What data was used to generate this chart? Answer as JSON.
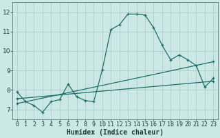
{
  "title": "",
  "xlabel": "Humidex (Indice chaleur)",
  "bg_color": "#cce8e4",
  "grid_color": "#aaccca",
  "line_color": "#1a6e6a",
  "xlim": [
    -0.5,
    23.5
  ],
  "ylim": [
    6.5,
    12.5
  ],
  "xticks": [
    0,
    1,
    2,
    3,
    4,
    5,
    6,
    7,
    8,
    9,
    10,
    11,
    12,
    13,
    14,
    15,
    16,
    17,
    18,
    19,
    20,
    21,
    22,
    23
  ],
  "yticks": [
    7,
    8,
    9,
    10,
    11,
    12
  ],
  "line1_x": [
    0,
    1,
    2,
    3,
    4,
    5,
    6,
    7,
    8,
    9,
    10,
    11,
    12,
    13,
    14,
    15,
    16,
    17,
    18,
    19,
    20,
    21,
    22,
    23
  ],
  "line1_y": [
    7.9,
    7.4,
    7.2,
    6.85,
    7.4,
    7.5,
    8.3,
    7.65,
    7.45,
    7.4,
    9.05,
    11.1,
    11.35,
    11.9,
    11.9,
    11.85,
    11.2,
    10.3,
    9.55,
    9.8,
    9.55,
    9.25,
    8.15,
    8.6
  ],
  "line2_x": [
    0,
    23
  ],
  "line2_y": [
    7.55,
    8.45
  ],
  "line3_x": [
    0,
    23
  ],
  "line3_y": [
    7.3,
    9.45
  ],
  "font_color": "#1a3a3a",
  "xlabel_fontsize": 7,
  "tick_fontsize": 6
}
